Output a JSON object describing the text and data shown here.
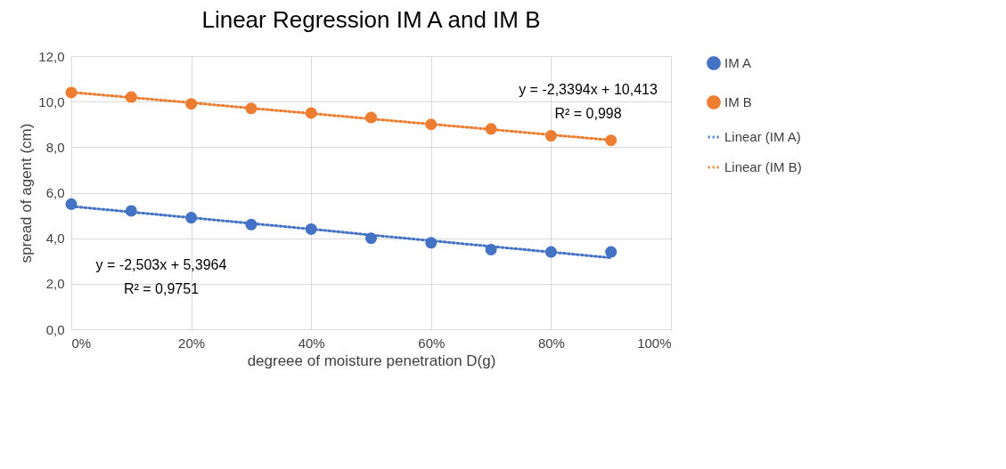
{
  "chart_data": {
    "type": "scatter",
    "title": "Linear Regression IM A and IM B",
    "xlabel": "degreee of moisture penetration D(g)",
    "ylabel": "spread of agent  (cm)",
    "x": [
      0,
      0.1,
      0.2,
      0.3,
      0.4,
      0.5,
      0.6,
      0.7,
      0.8,
      0.9
    ],
    "series": [
      {
        "name": "IM A",
        "color": "#4472c4",
        "marker": "circle",
        "values": [
          5.5,
          5.2,
          4.9,
          4.6,
          4.4,
          4.0,
          3.8,
          3.5,
          3.4,
          3.4
        ]
      },
      {
        "name": "IM B",
        "color": "#ed7d31",
        "marker": "circle",
        "values": [
          10.4,
          10.2,
          9.9,
          9.7,
          9.5,
          9.3,
          9.0,
          8.8,
          8.5,
          8.3
        ]
      },
      {
        "name": "Linear (IM A)",
        "type": "line",
        "color": "#4472c4",
        "values": [
          5.4,
          5.15,
          4.9,
          4.65,
          4.4,
          4.14,
          3.89,
          3.64,
          3.39,
          3.14
        ]
      },
      {
        "name": "Linear (IM B)",
        "type": "line",
        "color": "#ed7d31",
        "values": [
          10.41,
          10.18,
          9.95,
          9.71,
          9.48,
          9.24,
          9.01,
          8.78,
          8.54,
          8.31
        ]
      }
    ],
    "xlim": [
      0,
      1
    ],
    "xticks": [
      {
        "value": 0,
        "label": "0%"
      },
      {
        "value": 0.2,
        "label": "20%"
      },
      {
        "value": 0.4,
        "label": "40%"
      },
      {
        "value": 0.6,
        "label": "60%"
      },
      {
        "value": 0.8,
        "label": "80%"
      },
      {
        "value": 1,
        "label": "100%"
      }
    ],
    "ylim": [
      0,
      12
    ],
    "yticks": [
      {
        "value": 0,
        "label": "0,0"
      },
      {
        "value": 2,
        "label": "2,0"
      },
      {
        "value": 4,
        "label": "4,0"
      },
      {
        "value": 6,
        "label": "6,0"
      },
      {
        "value": 8,
        "label": "8,0"
      },
      {
        "value": 10,
        "label": "10,0"
      },
      {
        "value": 12,
        "label": "12,0"
      }
    ],
    "annotations": [
      "y = -2,503x + 5,3964",
      "R² = 0,9751",
      "y = -2,3394x + 10,413",
      "R² = 0,998"
    ],
    "grid": true,
    "legend": "right",
    "line_style": "dotted"
  }
}
